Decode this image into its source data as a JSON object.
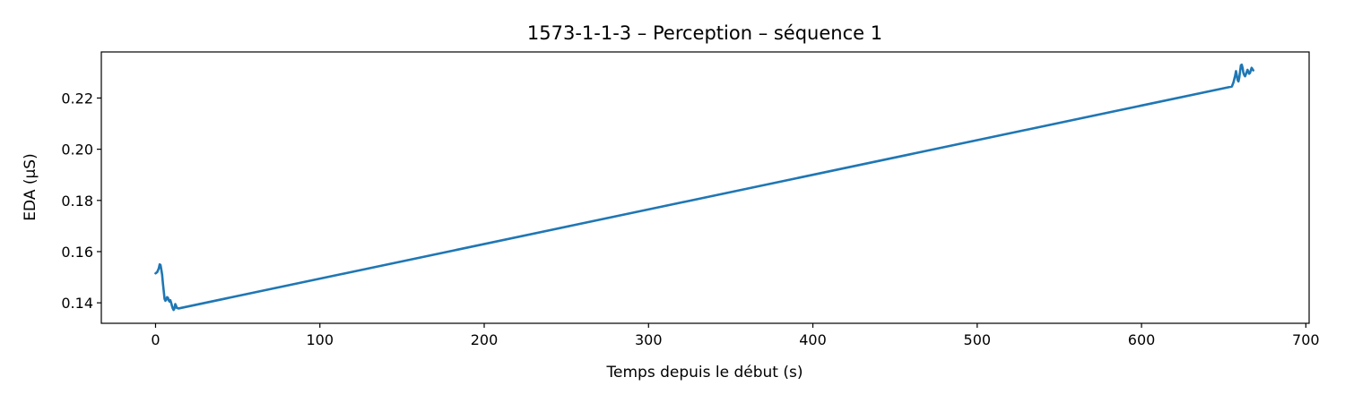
{
  "chart_data": {
    "type": "line",
    "title": "1573-1-1-3 – Perception – séquence 1",
    "xlabel": "Temps depuis le début (s)",
    "ylabel": "EDA (µS)",
    "xlim": [
      -33,
      702
    ],
    "ylim": [
      0.132,
      0.238
    ],
    "xticks": [
      0,
      100,
      200,
      300,
      400,
      500,
      600,
      700
    ],
    "yticks": [
      0.14,
      0.16,
      0.18,
      0.2,
      0.22
    ],
    "ytick_labels": [
      "0.14",
      "0.16",
      "0.18",
      "0.20",
      "0.22"
    ],
    "grid": false,
    "legend": "none",
    "series": [
      {
        "color": "#1f77b4",
        "x": [
          0,
          1,
          2,
          2.5,
          3,
          3.5,
          4,
          4.5,
          5,
          5.5,
          6,
          6.5,
          7,
          7.5,
          8,
          8.5,
          9,
          9.5,
          10,
          10.5,
          11,
          11.5,
          12,
          12.5,
          13,
          14,
          655,
          656,
          657,
          657.5,
          658,
          658.5,
          659,
          659.5,
          660,
          660.5,
          661,
          661.5,
          662,
          662.5,
          663,
          663.5,
          664,
          664.5,
          665,
          665.5,
          666,
          667,
          668
        ],
        "y": [
          0.1515,
          0.152,
          0.1535,
          0.155,
          0.1548,
          0.153,
          0.151,
          0.1475,
          0.1445,
          0.1415,
          0.1408,
          0.1412,
          0.1422,
          0.142,
          0.141,
          0.1405,
          0.141,
          0.14,
          0.1388,
          0.1378,
          0.1372,
          0.1378,
          0.1395,
          0.1388,
          0.138,
          0.1378,
          0.2245,
          0.2262,
          0.2288,
          0.2305,
          0.2288,
          0.227,
          0.2265,
          0.228,
          0.2305,
          0.2328,
          0.233,
          0.2318,
          0.2298,
          0.229,
          0.2285,
          0.2292,
          0.2302,
          0.231,
          0.2302,
          0.2295,
          0.2298,
          0.2318,
          0.2308
        ]
      }
    ]
  }
}
